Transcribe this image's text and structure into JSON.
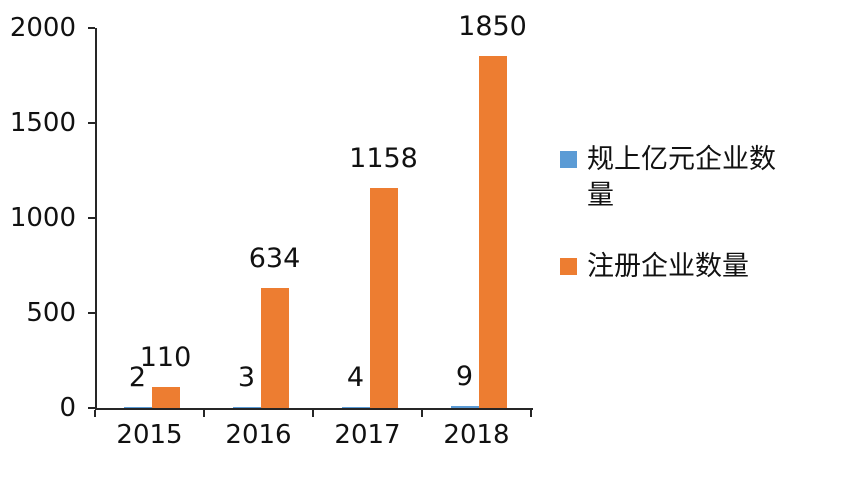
{
  "chart_data": {
    "type": "bar",
    "title": "",
    "categories": [
      "2015",
      "2016",
      "2017",
      "2018"
    ],
    "series": [
      {
        "key": "above-scale-100m-enterprises",
        "name": "规上亿元企业数量",
        "color": "#5b9bd5",
        "values": [
          2,
          3,
          4,
          9
        ]
      },
      {
        "key": "registered-enterprises",
        "name": "注册企业数量",
        "color": "#ed7d31",
        "values": [
          110,
          634,
          1158,
          1850
        ]
      }
    ],
    "xlabel": "",
    "ylabel": "",
    "ylim": [
      0,
      2000
    ],
    "yticks": [
      0,
      500,
      1000,
      1500,
      2000
    ],
    "grid": false,
    "data_labels": true,
    "legend_position": "right"
  },
  "colors": {
    "axis": "#262626",
    "text": "#111111"
  }
}
